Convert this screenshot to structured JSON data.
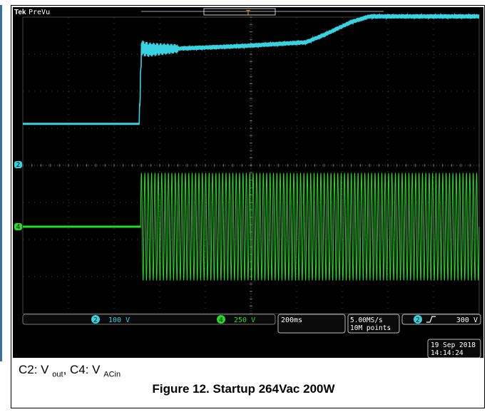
{
  "scope": {
    "brand_tek": "Tek",
    "mode": "PreVu",
    "trigger_marker": "T",
    "channels": [
      {
        "id": "2",
        "scale": "100 V",
        "color": "#39d2e0"
      },
      {
        "id": "4",
        "scale": "250 V",
        "color": "#22dd22"
      }
    ],
    "timebase": "200ms",
    "sample_rate": "5.00MS/s",
    "record_length": "10M points",
    "trigger": {
      "channel": "2",
      "slope_icon": "rising-edge-icon",
      "level": "300 V"
    },
    "date": "19 Sep  2018",
    "time": "14:14:24"
  },
  "caption": {
    "c2_prefix": "C2: V",
    "c2_sub": "out",
    "separator": ", C4: V",
    "c4_sub": "ACin"
  },
  "figure_title": "Figure 12. Startup 264Vac 200W",
  "chart_data": {
    "type": "line",
    "title": "",
    "x_divisions": 10,
    "y_divisions": 8,
    "series": [
      {
        "name": "C2",
        "color": "#39d2e0",
        "scale": "100 V/div",
        "points_div": [
          [
            0,
            1.1
          ],
          [
            2.55,
            1.1
          ],
          [
            2.6,
            3.15
          ],
          [
            2.75,
            3.1
          ],
          [
            4.8,
            3.2
          ],
          [
            6.2,
            3.3
          ],
          [
            6.6,
            3.5
          ],
          [
            7.2,
            3.85
          ],
          [
            7.6,
            4.0
          ],
          [
            10,
            4.0
          ]
        ],
        "ripple_div": 0.12
      },
      {
        "name": "C4",
        "color": "#22dd22",
        "scale": "250 V/div",
        "offset_div": 0,
        "off_until_div": 2.58,
        "amplitude_div": 1.45,
        "cycles": 100
      }
    ]
  }
}
